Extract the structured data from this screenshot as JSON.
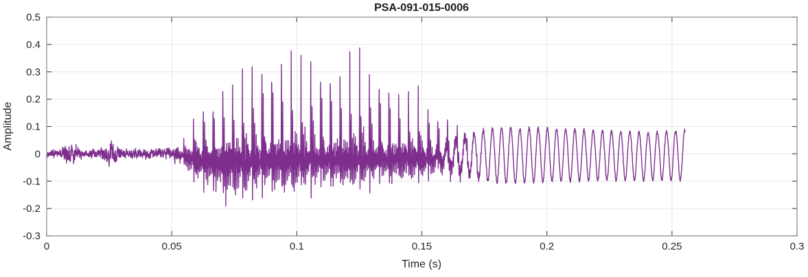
{
  "chart_data": {
    "type": "line",
    "title": "PSA-091-015-0006",
    "xlabel": "Time (s)",
    "ylabel": "Amplitude",
    "xlim": [
      0,
      0.3
    ],
    "ylim": [
      -0.3,
      0.5
    ],
    "xticks": [
      0,
      0.05,
      0.1,
      0.15,
      0.2,
      0.25,
      0.3
    ],
    "xtick_labels": [
      "0",
      "0.05",
      "0.1",
      "0.15",
      "0.2",
      "0.25",
      "0.3"
    ],
    "yticks": [
      -0.3,
      -0.2,
      -0.1,
      0,
      0.1,
      0.2,
      0.3,
      0.4,
      0.5
    ],
    "ytick_labels": [
      "-0.3",
      "-0.2",
      "-0.1",
      "0",
      "0.1",
      "0.2",
      "0.3",
      "0.4",
      "0.5"
    ],
    "grid": true,
    "legend": "none",
    "line_color": "#7E2F8E",
    "axis_color": "#8F8F8F",
    "tick_mark_color": "#4D4D4D",
    "grid_color": "#E6E6E6",
    "signal": {
      "description": "speech-like waveform: low-level noise 0-0.05 s with small bursts near 0.009 s and 0.025 s; voiced glottal pulses ~256 Hz with positive spike envelope peaking 0.44 near 0.095 s and negative dips to -0.21; decays after 0.15 s into a ~273 Hz near-sinusoid of amplitude +0.09/-0.10 that ends abruptly at 0.255 s",
      "t_end": 0.2553,
      "dt": 8e-05,
      "pulse_f0_hz": 256,
      "tail_freq_hz": 273,
      "fade_noise": [
        0.047,
        0.06
      ],
      "fade_sine": [
        0.148,
        0.185
      ],
      "pos_envelope": [
        [
          0.0,
          0.02
        ],
        [
          0.048,
          0.03
        ],
        [
          0.052,
          0.06
        ],
        [
          0.056,
          0.1
        ],
        [
          0.06,
          0.16
        ],
        [
          0.064,
          0.24
        ],
        [
          0.068,
          0.28
        ],
        [
          0.072,
          0.31
        ],
        [
          0.076,
          0.32
        ],
        [
          0.08,
          0.35
        ],
        [
          0.084,
          0.41
        ],
        [
          0.088,
          0.43
        ],
        [
          0.092,
          0.44
        ],
        [
          0.096,
          0.44
        ],
        [
          0.1,
          0.42
        ],
        [
          0.104,
          0.43
        ],
        [
          0.108,
          0.41
        ],
        [
          0.112,
          0.42
        ],
        [
          0.116,
          0.41
        ],
        [
          0.12,
          0.41
        ],
        [
          0.124,
          0.4
        ],
        [
          0.128,
          0.39
        ],
        [
          0.132,
          0.38
        ],
        [
          0.136,
          0.34
        ],
        [
          0.14,
          0.32
        ],
        [
          0.144,
          0.28
        ],
        [
          0.148,
          0.26
        ],
        [
          0.152,
          0.22
        ],
        [
          0.156,
          0.19
        ],
        [
          0.16,
          0.16
        ],
        [
          0.164,
          0.14
        ],
        [
          0.168,
          0.12
        ],
        [
          0.172,
          0.11
        ],
        [
          0.176,
          0.1
        ],
        [
          0.182,
          0.095
        ],
        [
          0.19,
          0.09
        ],
        [
          0.2,
          0.092
        ],
        [
          0.21,
          0.09
        ],
        [
          0.22,
          0.088
        ],
        [
          0.23,
          0.085
        ],
        [
          0.24,
          0.082
        ],
        [
          0.248,
          0.085
        ],
        [
          0.2553,
          0.09
        ]
      ],
      "neg_envelope": [
        [
          0.0,
          -0.02
        ],
        [
          0.048,
          -0.05
        ],
        [
          0.052,
          -0.08
        ],
        [
          0.056,
          -0.11
        ],
        [
          0.06,
          -0.14
        ],
        [
          0.064,
          -0.17
        ],
        [
          0.068,
          -0.2
        ],
        [
          0.072,
          -0.21
        ],
        [
          0.078,
          -0.2
        ],
        [
          0.084,
          -0.19
        ],
        [
          0.09,
          -0.18
        ],
        [
          0.096,
          -0.18
        ],
        [
          0.104,
          -0.17
        ],
        [
          0.112,
          -0.16
        ],
        [
          0.12,
          -0.16
        ],
        [
          0.128,
          -0.15
        ],
        [
          0.136,
          -0.14
        ],
        [
          0.144,
          -0.13
        ],
        [
          0.152,
          -0.13
        ],
        [
          0.16,
          -0.12
        ],
        [
          0.17,
          -0.11
        ],
        [
          0.18,
          -0.105
        ],
        [
          0.2,
          -0.1
        ],
        [
          0.22,
          -0.1
        ],
        [
          0.24,
          -0.103
        ],
        [
          0.2553,
          -0.1
        ]
      ],
      "noise_envelope": [
        [
          0.0,
          0.018
        ],
        [
          0.005,
          0.02
        ],
        [
          0.007,
          0.04
        ],
        [
          0.009,
          0.05
        ],
        [
          0.012,
          0.045
        ],
        [
          0.014,
          0.02
        ],
        [
          0.018,
          0.018
        ],
        [
          0.022,
          0.025
        ],
        [
          0.025,
          0.05
        ],
        [
          0.027,
          0.04
        ],
        [
          0.03,
          0.02
        ],
        [
          0.034,
          0.022
        ],
        [
          0.038,
          0.02
        ],
        [
          0.042,
          0.022
        ],
        [
          0.046,
          0.025
        ],
        [
          0.05,
          0.04
        ],
        [
          0.055,
          0.05
        ]
      ],
      "pulse_shape": [
        [
          0.0,
          -0.06
        ],
        [
          0.018,
          0.6
        ],
        [
          0.03,
          1.0
        ],
        [
          0.042,
          0.55
        ],
        [
          0.055,
          -0.12
        ],
        [
          0.075,
          -1.0
        ],
        [
          0.095,
          -0.31
        ],
        [
          0.115,
          0.1
        ],
        [
          0.135,
          -0.38
        ],
        [
          0.16,
          0.58
        ],
        [
          0.185,
          0.1
        ],
        [
          0.21,
          -0.69
        ],
        [
          0.24,
          0.15
        ],
        [
          0.27,
          -0.44
        ],
        [
          0.3,
          0.3
        ],
        [
          0.33,
          -0.88
        ],
        [
          0.365,
          0.12
        ],
        [
          0.4,
          -0.38
        ],
        [
          0.44,
          0.25
        ],
        [
          0.48,
          -0.75
        ],
        [
          0.52,
          0.1
        ],
        [
          0.56,
          -0.44
        ],
        [
          0.6,
          0.18
        ],
        [
          0.64,
          -0.63
        ],
        [
          0.68,
          0.08
        ],
        [
          0.72,
          -0.38
        ],
        [
          0.76,
          0.15
        ],
        [
          0.8,
          -0.56
        ],
        [
          0.84,
          0.05
        ],
        [
          0.88,
          -0.31
        ],
        [
          0.92,
          0.1
        ],
        [
          0.96,
          -0.38
        ],
        [
          1.0,
          -0.06
        ]
      ]
    }
  }
}
